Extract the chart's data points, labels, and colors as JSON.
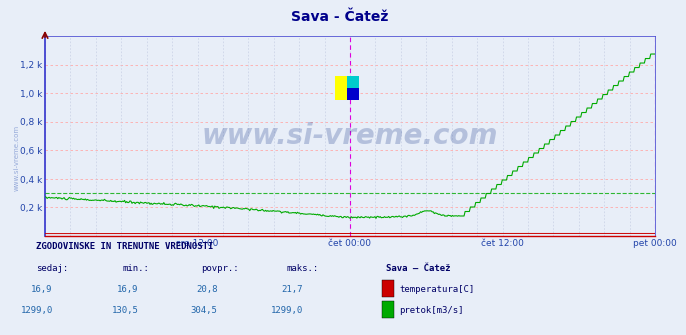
{
  "title": "Sava - Čatež",
  "title_color": "#00008B",
  "title_fontsize": 10,
  "bg_color": "#e8eef8",
  "plot_bg_color": "#e8eef8",
  "ymin": 0,
  "ymax": 1400,
  "yticks": [
    200,
    400,
    600,
    800,
    1000,
    1200
  ],
  "ytick_labels": [
    "0,2 k",
    "0,4 k",
    "0,6 k",
    "0,8 k",
    "1,0 k",
    "1,2 k"
  ],
  "xtick_labels": [
    "sre 12:00",
    "čet 00:00",
    "čet 12:00",
    "pet 00:00"
  ],
  "xtick_positions": [
    0.25,
    0.5,
    0.75,
    1.0
  ],
  "watermark": "www.si-vreme.com",
  "watermark_color": "#1a3a8a",
  "watermark_alpha": 0.25,
  "watermark_fontsize": 20,
  "legend_title": "Sava – Čatež",
  "legend_items": [
    "temperatura[C]",
    "pretok[m3/s]"
  ],
  "legend_colors": [
    "#cc0000",
    "#00aa00"
  ],
  "stats_header": "ZGODOVINSKE IN TRENUTNE VREDNOSTI",
  "stats_cols": [
    "sedaj:",
    "min.:",
    "povpr.:",
    "maks.:"
  ],
  "stats_temp": [
    16.9,
    16.9,
    20.8,
    21.7
  ],
  "stats_flow": [
    1299.0,
    130.5,
    304.5,
    1299.0
  ],
  "n_points": 576,
  "temp_color": "#cc0000",
  "flow_color": "#00aa00",
  "ref_line_value": 300,
  "grid_h_color": "#ffaaaa",
  "grid_v_color": "#c0c8e0",
  "border_left_color": "#3333cc",
  "border_bottom_color": "#cc0000",
  "magenta_vline_color": "#dd00dd",
  "magenta_vline_positions": [
    0.5,
    1.0
  ]
}
